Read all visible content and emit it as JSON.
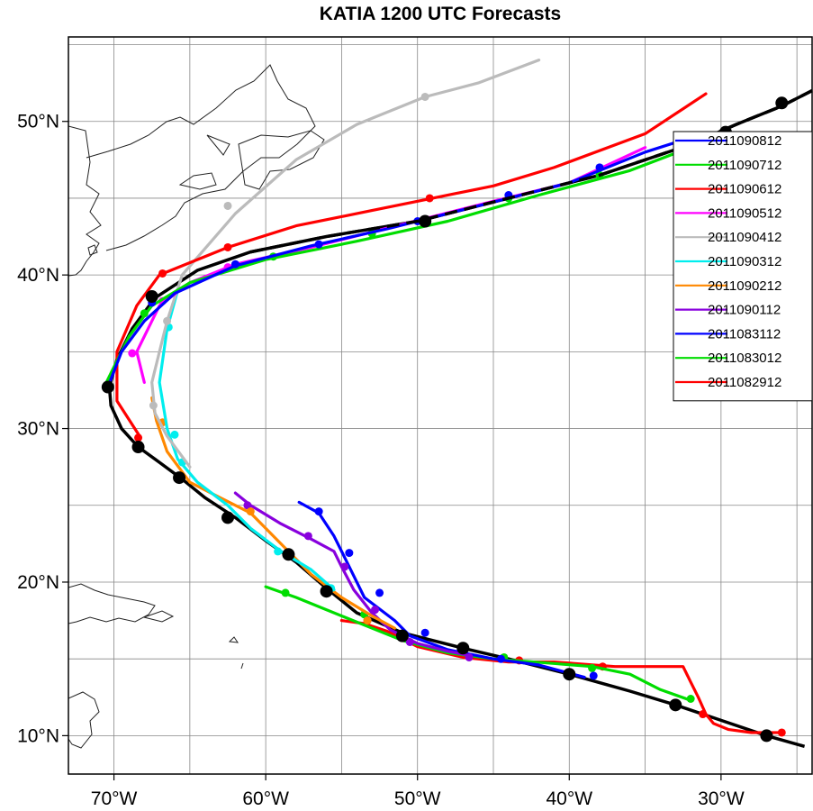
{
  "title": "KATIA 1200 UTC Forecasts",
  "chart_data": {
    "type": "map",
    "title": "KATIA 1200 UTC Forecasts",
    "lon_range": [
      -73,
      -24
    ],
    "lat_range": [
      7.5,
      55.5
    ],
    "x_ticks": [
      {
        "value": -70,
        "label": "70°W"
      },
      {
        "value": -60,
        "label": "60°W"
      },
      {
        "value": -50,
        "label": "50°W"
      },
      {
        "value": -40,
        "label": "40°W"
      },
      {
        "value": -30,
        "label": "30°W"
      }
    ],
    "y_ticks": [
      {
        "value": 10,
        "label": "10°N"
      },
      {
        "value": 20,
        "label": "20°N"
      },
      {
        "value": 30,
        "label": "30°N"
      },
      {
        "value": 40,
        "label": "40°N"
      },
      {
        "value": 50,
        "label": "50°N"
      }
    ],
    "grid_lons": [
      -70,
      -65,
      -60,
      -55,
      -50,
      -45,
      -40,
      -35,
      -30,
      -25
    ],
    "grid_lats": [
      10,
      15,
      20,
      25,
      30,
      35,
      40,
      45,
      50,
      55
    ],
    "grid": true,
    "legend_position": "right",
    "observed_track": {
      "color": "#000000",
      "points": [
        [
          -24.5,
          9.3
        ],
        [
          -27,
          10
        ],
        [
          -30,
          11
        ],
        [
          -33,
          12
        ],
        [
          -36,
          12.9
        ],
        [
          -40,
          14
        ],
        [
          -44,
          15
        ],
        [
          -47,
          15.7
        ],
        [
          -51,
          16.7
        ],
        [
          -54,
          18
        ],
        [
          -56,
          19.6
        ],
        [
          -58,
          21.3
        ],
        [
          -60,
          22.7
        ],
        [
          -62,
          24.2
        ],
        [
          -64,
          25.5
        ],
        [
          -65.5,
          26.7
        ],
        [
          -67,
          27.8
        ],
        [
          -68.4,
          28.8
        ],
        [
          -69.5,
          30
        ],
        [
          -70.2,
          31.5
        ],
        [
          -70.3,
          32.7
        ],
        [
          -69.8,
          34.5
        ],
        [
          -68.8,
          36.5
        ],
        [
          -67.3,
          38.5
        ],
        [
          -64.5,
          40.3
        ],
        [
          -61,
          41.5
        ],
        [
          -56,
          42.5
        ],
        [
          -50,
          43.5
        ],
        [
          -44,
          45
        ],
        [
          -38,
          46.5
        ],
        [
          -32,
          48.5
        ],
        [
          -29,
          49.8
        ],
        [
          -26,
          51
        ],
        [
          -24,
          52
        ]
      ],
      "markers": [
        [
          -27,
          10
        ],
        [
          -33,
          12
        ],
        [
          -40,
          14
        ],
        [
          -47,
          15.7
        ],
        [
          -51,
          16.5
        ],
        [
          -56,
          19.4
        ],
        [
          -58.5,
          21.8
        ],
        [
          -62.5,
          24.2
        ],
        [
          -65.7,
          26.8
        ],
        [
          -68.4,
          28.8
        ],
        [
          -70.4,
          32.7
        ],
        [
          -67.5,
          38.6
        ],
        [
          -49.5,
          43.5
        ],
        [
          -29.7,
          49.3
        ],
        [
          -26,
          51.2
        ]
      ]
    },
    "series": [
      {
        "name": "2011090812",
        "color": "#0000ff",
        "points": [
          [
            -70.4,
            32.7
          ],
          [
            -69.5,
            35
          ],
          [
            -68,
            37
          ],
          [
            -66,
            38.8
          ],
          [
            -62,
            40.6
          ],
          [
            -57,
            41.9
          ],
          [
            -52,
            43
          ],
          [
            -46,
            44.5
          ],
          [
            -40,
            46
          ],
          [
            -35,
            48
          ],
          [
            -31.5,
            49.1
          ]
        ],
        "markers": [
          [
            -70.4,
            32.7
          ],
          [
            -67.5,
            38.2
          ],
          [
            -62,
            40.7
          ],
          [
            -56.5,
            42
          ],
          [
            -50,
            43.5
          ],
          [
            -44,
            45.2
          ],
          [
            -38,
            47
          ],
          [
            -32,
            48.9
          ]
        ]
      },
      {
        "name": "2011090712",
        "color": "#00dd00",
        "points": [
          [
            -70.5,
            33
          ],
          [
            -69,
            36
          ],
          [
            -67.5,
            38
          ],
          [
            -65,
            39.5
          ],
          [
            -60,
            41
          ],
          [
            -54,
            42.2
          ],
          [
            -48,
            43.5
          ],
          [
            -42,
            45.2
          ],
          [
            -36,
            46.8
          ],
          [
            -31.5,
            48.5
          ]
        ],
        "markers": [
          [
            -68,
            37.5
          ],
          [
            -59.5,
            41.2
          ],
          [
            -53,
            42.7
          ],
          [
            -44,
            45
          ],
          [
            -38,
            46.5
          ]
        ]
      },
      {
        "name": "2011090612",
        "color": "#ff0000",
        "points": [
          [
            -68.3,
            29.5
          ],
          [
            -69.8,
            31.8
          ],
          [
            -69.8,
            35
          ],
          [
            -68.5,
            38
          ],
          [
            -67,
            40
          ],
          [
            -62.5,
            41.8
          ],
          [
            -58,
            43.2
          ],
          [
            -53,
            44.2
          ],
          [
            -49,
            45
          ],
          [
            -45,
            45.8
          ],
          [
            -41,
            47
          ],
          [
            -35,
            49.2
          ],
          [
            -31,
            51.8
          ]
        ],
        "markers": [
          [
            -68.4,
            29.4
          ],
          [
            -66.8,
            40.1
          ],
          [
            -62.5,
            41.8
          ],
          [
            -49.2,
            45
          ]
        ]
      },
      {
        "name": "2011090512",
        "color": "#ff00ff",
        "points": [
          [
            -68,
            33
          ],
          [
            -68.5,
            35
          ],
          [
            -67,
            38
          ],
          [
            -65,
            39.5
          ],
          [
            -62,
            40.7
          ],
          [
            -57,
            41.8
          ],
          [
            -51,
            43.3
          ],
          [
            -45,
            44.8
          ],
          [
            -40,
            46
          ],
          [
            -35,
            48.3
          ]
        ],
        "markers": [
          [
            -68.8,
            34.9
          ],
          [
            -66.8,
            38.3
          ],
          [
            -62.5,
            40.5
          ]
        ]
      },
      {
        "name": "2011090412",
        "color": "#bbbbbb",
        "points": [
          [
            -65,
            27.5
          ],
          [
            -66.5,
            29.5
          ],
          [
            -67.3,
            31
          ],
          [
            -67.5,
            33
          ],
          [
            -67,
            35
          ],
          [
            -66.5,
            37
          ],
          [
            -65.5,
            40
          ],
          [
            -62,
            44
          ],
          [
            -58,
            47.5
          ],
          [
            -54,
            49.8
          ],
          [
            -49.5,
            51.6
          ],
          [
            -46,
            52.5
          ],
          [
            -42,
            54
          ]
        ],
        "markers": [
          [
            -67.4,
            31.5
          ],
          [
            -66.5,
            37
          ],
          [
            -62.5,
            44.5
          ],
          [
            -49.5,
            51.6
          ]
        ]
      },
      {
        "name": "2011090312",
        "color": "#00eeee",
        "points": [
          [
            -55.5,
            19.5
          ],
          [
            -57,
            20.8
          ],
          [
            -59,
            22
          ],
          [
            -61,
            23.5
          ],
          [
            -62.5,
            25
          ],
          [
            -64.5,
            26.5
          ],
          [
            -65.8,
            28
          ],
          [
            -66.5,
            30
          ],
          [
            -67,
            33
          ],
          [
            -66.5,
            36.5
          ],
          [
            -65.8,
            39
          ]
        ],
        "markers": [
          [
            -55.7,
            19.6
          ],
          [
            -59.2,
            22
          ],
          [
            -65.5,
            27.8
          ],
          [
            -66,
            29.6
          ],
          [
            -66.4,
            36.6
          ]
        ]
      },
      {
        "name": "2011090212",
        "color": "#ff8800",
        "points": [
          [
            -51.5,
            17
          ],
          [
            -53,
            17.8
          ],
          [
            -55,
            19
          ],
          [
            -57,
            20.5
          ],
          [
            -59,
            22.5
          ],
          [
            -61,
            24.5
          ],
          [
            -63,
            25.5
          ],
          [
            -65,
            26.5
          ],
          [
            -66.5,
            28.5
          ],
          [
            -67.2,
            30.5
          ],
          [
            -67.5,
            32
          ]
        ],
        "markers": [
          [
            -53.3,
            17.5
          ],
          [
            -61,
            24.6
          ],
          [
            -66.8,
            30.4
          ]
        ]
      },
      {
        "name": "2011090112",
        "color": "#8800dd",
        "points": [
          [
            -46.5,
            15.2
          ],
          [
            -48,
            15.5
          ],
          [
            -50,
            16
          ],
          [
            -51.8,
            16.9
          ],
          [
            -53,
            18
          ],
          [
            -54.2,
            19.5
          ],
          [
            -55,
            21
          ],
          [
            -55.5,
            22
          ],
          [
            -57,
            22.8
          ],
          [
            -59,
            23.8
          ],
          [
            -61,
            25
          ],
          [
            -62,
            25.8
          ]
        ],
        "markers": [
          [
            -46.6,
            15.1
          ],
          [
            -50.5,
            16.1
          ],
          [
            -52.8,
            18.2
          ],
          [
            -54.8,
            21
          ],
          [
            -57.2,
            23
          ],
          [
            -61.2,
            25
          ]
        ]
      },
      {
        "name": "2011083112",
        "color": "#0000ff",
        "points": [
          [
            -39,
            13.8
          ],
          [
            -42,
            14.6
          ],
          [
            -45,
            15
          ],
          [
            -48,
            15.6
          ],
          [
            -50.5,
            16.5
          ],
          [
            -51.5,
            17.5
          ],
          [
            -53.5,
            19
          ],
          [
            -54.5,
            21
          ],
          [
            -55.5,
            23
          ],
          [
            -56.5,
            24.5
          ],
          [
            -57.8,
            25.2
          ]
        ],
        "markers": [
          [
            -38.4,
            13.9
          ],
          [
            -44.5,
            15
          ],
          [
            -49.5,
            16.7
          ],
          [
            -52.5,
            19.3
          ],
          [
            -54.5,
            21.9
          ],
          [
            -56.5,
            24.6
          ]
        ]
      },
      {
        "name": "2011083012",
        "color": "#00dd00",
        "points": [
          [
            -32,
            12.3
          ],
          [
            -34,
            13
          ],
          [
            -36,
            14
          ],
          [
            -38.5,
            14.5
          ],
          [
            -41,
            14.7
          ],
          [
            -45,
            15
          ],
          [
            -48,
            15.4
          ],
          [
            -51,
            16.2
          ],
          [
            -55,
            17.8
          ],
          [
            -58,
            19
          ],
          [
            -60,
            19.7
          ]
        ],
        "markers": [
          [
            -32,
            12.4
          ],
          [
            -38.5,
            14.4
          ],
          [
            -44.3,
            15.1
          ],
          [
            -53.5,
            17.9
          ],
          [
            -58.7,
            19.3
          ]
        ]
      },
      {
        "name": "2011082912",
        "color": "#ff0000",
        "points": [
          [
            -26,
            10.2
          ],
          [
            -28,
            10.2
          ],
          [
            -29.5,
            10.4
          ],
          [
            -30.5,
            10.8
          ],
          [
            -31,
            11.4
          ],
          [
            -31.5,
            12.5
          ],
          [
            -32,
            13.5
          ],
          [
            -32.5,
            14.5
          ],
          [
            -37,
            14.5
          ],
          [
            -41,
            14.8
          ],
          [
            -44,
            14.8
          ],
          [
            -47,
            15.1
          ],
          [
            -50,
            15.8
          ],
          [
            -52,
            16.8
          ],
          [
            -53.5,
            17.3
          ],
          [
            -55,
            17.5
          ]
        ],
        "markers": [
          [
            -26,
            10.2
          ],
          [
            -31.2,
            11.4
          ],
          [
            -37.8,
            14.5
          ],
          [
            -43.3,
            14.9
          ],
          [
            -53.3,
            17.5
          ]
        ]
      }
    ]
  }
}
